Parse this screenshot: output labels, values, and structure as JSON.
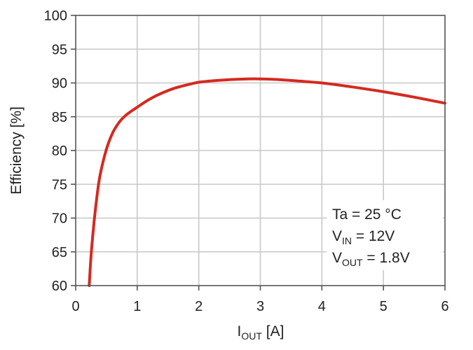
{
  "chart_data": {
    "type": "line",
    "xlabel": {
      "main": "I",
      "sub": "OUT",
      "unit": " [A]"
    },
    "ylabel": "Efficiency [%]",
    "xlim": [
      0,
      6
    ],
    "ylim": [
      60,
      100
    ],
    "x_ticks": [
      0,
      1,
      2,
      3,
      4,
      5,
      6
    ],
    "y_ticks": [
      60,
      65,
      70,
      75,
      80,
      85,
      90,
      95,
      100
    ],
    "grid": true,
    "series": [
      {
        "color": "#d42a20",
        "x": [
          0.22,
          0.25,
          0.3,
          0.35,
          0.4,
          0.5,
          0.6,
          0.7,
          0.8,
          0.9,
          1.0,
          1.2,
          1.4,
          1.6,
          1.8,
          2.0,
          2.2,
          2.5,
          2.8,
          3.0,
          3.3,
          3.6,
          4.0,
          4.5,
          5.0,
          5.5,
          6.0
        ],
        "y": [
          60.0,
          64.5,
          69.5,
          73.5,
          76.5,
          80.2,
          82.6,
          84.1,
          85.1,
          85.8,
          86.4,
          87.6,
          88.5,
          89.2,
          89.7,
          90.1,
          90.3,
          90.5,
          90.6,
          90.6,
          90.5,
          90.3,
          90.0,
          89.4,
          88.7,
          87.9,
          87.0
        ]
      }
    ],
    "annotations": [
      {
        "main": "Ta = 25 °C",
        "sub": "",
        "rest": ""
      },
      {
        "main": "V",
        "sub": "IN",
        "rest": " = 12V"
      },
      {
        "main": "V",
        "sub": "OUT",
        "rest": " = 1.8V"
      }
    ]
  }
}
